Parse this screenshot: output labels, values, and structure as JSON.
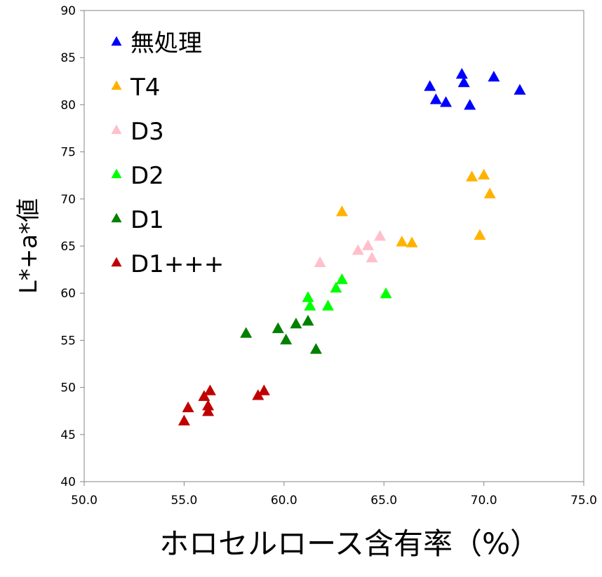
{
  "chart_data": {
    "type": "scatter",
    "title": "",
    "xlabel": "ホロセルロース含有率（%）",
    "ylabel": "L*+a*値",
    "xlim": [
      50,
      75
    ],
    "ylim": [
      40,
      90
    ],
    "x_ticks": [
      "50.0",
      "55.0",
      "60.0",
      "65.0",
      "70.0",
      "75.0"
    ],
    "y_ticks": [
      "40",
      "45",
      "50",
      "55",
      "60",
      "65",
      "70",
      "75",
      "80",
      "85",
      "90"
    ],
    "grid": false,
    "legend_position": "top-left",
    "marker": "triangle",
    "series": [
      {
        "name": "無処理",
        "color": "#0000ff",
        "points": [
          [
            67.3,
            81.9
          ],
          [
            67.6,
            80.5
          ],
          [
            68.1,
            80.2
          ],
          [
            68.9,
            83.2
          ],
          [
            69.0,
            82.3
          ],
          [
            69.3,
            79.9
          ],
          [
            70.5,
            82.9
          ],
          [
            71.8,
            81.5
          ]
        ]
      },
      {
        "name": "T4",
        "color": "#ffb300",
        "points": [
          [
            62.9,
            68.6
          ],
          [
            65.9,
            65.4
          ],
          [
            66.4,
            65.3
          ],
          [
            69.4,
            72.3
          ],
          [
            70.0,
            72.5
          ],
          [
            70.3,
            70.5
          ],
          [
            69.8,
            66.1
          ]
        ]
      },
      {
        "name": "D3",
        "color": "#ffc0cb",
        "points": [
          [
            61.8,
            63.2
          ],
          [
            63.7,
            64.5
          ],
          [
            64.2,
            65.0
          ],
          [
            64.4,
            63.7
          ],
          [
            64.8,
            66.0
          ]
        ]
      },
      {
        "name": "D2",
        "color": "#00ff00",
        "points": [
          [
            61.2,
            59.5
          ],
          [
            61.3,
            58.6
          ],
          [
            62.2,
            58.6
          ],
          [
            62.6,
            60.5
          ],
          [
            62.9,
            61.4
          ],
          [
            65.1,
            59.9
          ]
        ]
      },
      {
        "name": "D1",
        "color": "#008000",
        "points": [
          [
            58.1,
            55.7
          ],
          [
            59.7,
            56.2
          ],
          [
            60.1,
            55.0
          ],
          [
            60.6,
            56.7
          ],
          [
            61.2,
            57.0
          ],
          [
            61.6,
            54.0
          ]
        ]
      },
      {
        "name": "D1+++",
        "color": "#c00000",
        "points": [
          [
            55.0,
            46.4
          ],
          [
            55.2,
            47.8
          ],
          [
            56.0,
            49.0
          ],
          [
            56.2,
            48.0
          ],
          [
            56.3,
            49.6
          ],
          [
            56.2,
            47.4
          ],
          [
            58.7,
            49.1
          ],
          [
            59.0,
            49.6
          ]
        ]
      }
    ]
  }
}
